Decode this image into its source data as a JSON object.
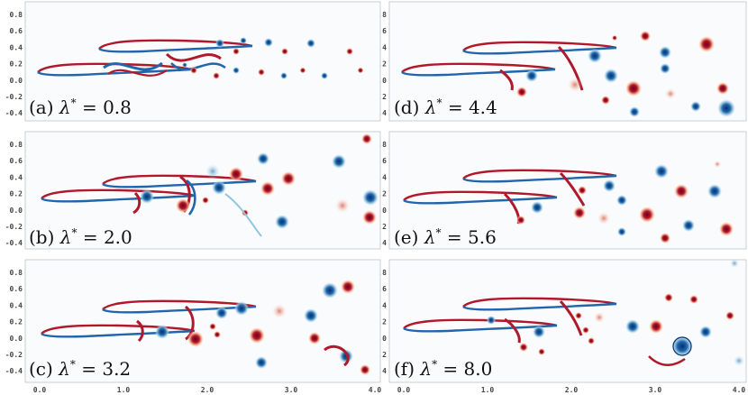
{
  "figure": {
    "panels": [
      {
        "id": "a",
        "label": "(a)",
        "value": "0.8"
      },
      {
        "id": "b",
        "label": "(b)",
        "value": "2.0"
      },
      {
        "id": "c",
        "label": "(c)",
        "value": "3.2"
      },
      {
        "id": "d",
        "label": "(d)",
        "value": "4.4"
      },
      {
        "id": "e",
        "label": "(e)",
        "value": "5.6"
      },
      {
        "id": "f",
        "label": "(f)",
        "value": "8.0"
      }
    ],
    "symbol": "λ",
    "superscript": "*",
    "equals": "=",
    "y_ticks": [
      "0.8",
      "0.6",
      "0.4",
      "0.2",
      "0.0",
      "-0.2",
      "-0.4"
    ],
    "x_ticks_left": [
      "0.0",
      "1.0",
      "2.0",
      "3.0",
      "4.0"
    ],
    "x_ticks_right": [
      "0.0",
      "1.0",
      "2.0",
      "3.0",
      "4.0"
    ],
    "colors": {
      "positive": "#b2182b",
      "negative": "#2166ac",
      "positive_light": "#f4a582",
      "negative_light": "#92c5de",
      "background": "#fafbfd"
    }
  }
}
